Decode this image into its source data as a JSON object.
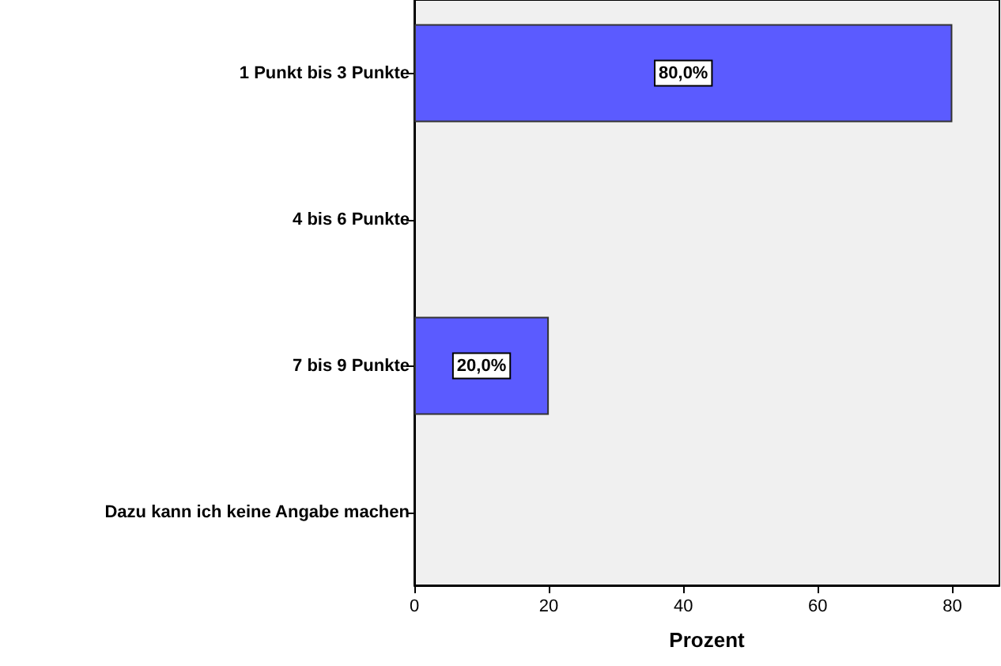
{
  "chart_data": {
    "type": "bar",
    "orientation": "horizontal",
    "xlabel": "Prozent",
    "categories": [
      "1 Punkt bis 3 Punkte",
      "4 bis 6 Punkte",
      "7 bis 9 Punkte",
      "Dazu kann ich keine Angabe machen"
    ],
    "values": [
      80,
      null,
      20,
      null
    ],
    "value_labels": [
      "80,0%",
      null,
      "20,0%",
      null
    ],
    "color": "#5b5bff",
    "xlim": [
      0,
      87
    ],
    "xticks": [
      0,
      20,
      40,
      60,
      80
    ],
    "grid": false
  }
}
